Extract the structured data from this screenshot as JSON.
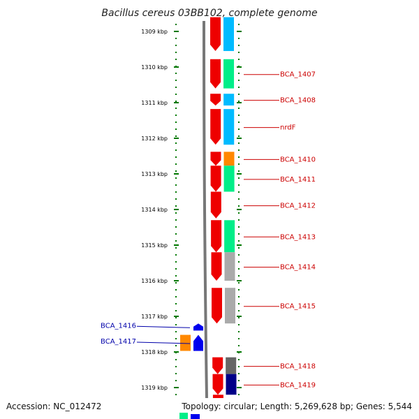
{
  "title": "Bacillus cereus 03BB102, complete genome",
  "footer": {
    "accession": "Accession: NC_012472",
    "summary": "Topology: circular; Length: 5,269,628 bp; Genes: 5,544"
  },
  "colors": {
    "forward": "#ee0000",
    "reverse": "#0000ee",
    "backbone": "#777777",
    "tick": "#007700",
    "label_right": "#cc0000",
    "label_left": "#0000aa"
  },
  "kbp_ticks": [
    {
      "kbp": 1309,
      "label": "1309 kbp"
    },
    {
      "kbp": 1310,
      "label": "1310 kbp"
    },
    {
      "kbp": 1311,
      "label": "1311 kbp"
    },
    {
      "kbp": 1312,
      "label": "1312 kbp"
    },
    {
      "kbp": 1313,
      "label": "1313 kbp"
    },
    {
      "kbp": 1314,
      "label": "1314 kbp"
    },
    {
      "kbp": 1315,
      "label": "1315 kbp"
    },
    {
      "kbp": 1316,
      "label": "1316 kbp"
    },
    {
      "kbp": 1317,
      "label": "1317 kbp"
    },
    {
      "kbp": 1318,
      "label": "1318 kbp"
    },
    {
      "kbp": 1319,
      "label": "1319 kbp"
    }
  ],
  "genes": [
    {
      "label": "",
      "strand": "+",
      "start": 1308.6,
      "end": 1309.55,
      "cog": "#00bbff"
    },
    {
      "label": "BCA_1407",
      "strand": "+",
      "start": 1309.78,
      "end": 1310.6,
      "cog": "#00ee88"
    },
    {
      "label": "BCA_1408",
      "strand": "+",
      "start": 1310.75,
      "end": 1311.08,
      "cog": "#00bbff"
    },
    {
      "label": "nrdF",
      "strand": "+",
      "start": 1311.18,
      "end": 1312.18,
      "cog": "#00bbff"
    },
    {
      "label": "BCA_1410",
      "strand": "+",
      "start": 1312.38,
      "end": 1312.77,
      "cog": "#ff8800"
    },
    {
      "label": "BCA_1411",
      "strand": "+",
      "start": 1312.77,
      "end": 1313.5,
      "cog": "#00ee88"
    },
    {
      "label": "BCA_1412",
      "strand": "+",
      "start": 1313.5,
      "end": 1314.25,
      "cog": ""
    },
    {
      "label": "BCA_1413",
      "strand": "+",
      "start": 1314.3,
      "end": 1315.2,
      "cog": "#00ee88"
    },
    {
      "label": "BCA_1414",
      "strand": "+",
      "start": 1315.2,
      "end": 1316.0,
      "cog": "#aaaaaa"
    },
    {
      "label": "BCA_1415",
      "strand": "+",
      "start": 1316.2,
      "end": 1317.2,
      "cog": "#aaaaaa"
    },
    {
      "label": "BCA_1416",
      "strand": "-",
      "start": 1317.2,
      "end": 1317.4,
      "cog": ""
    },
    {
      "label": "BCA_1417",
      "strand": "-",
      "start": 1317.52,
      "end": 1317.97,
      "cog": "#ff8800"
    },
    {
      "label": "BCA_1418",
      "strand": "+",
      "start": 1318.15,
      "end": 1318.62,
      "cog": "#666666"
    },
    {
      "label": "BCA_1419",
      "strand": "+",
      "start": 1318.62,
      "end": 1319.2,
      "cog": "#000088"
    },
    {
      "label": "",
      "strand": "+",
      "start": 1319.2,
      "end": 1319.45,
      "cog": ""
    }
  ]
}
